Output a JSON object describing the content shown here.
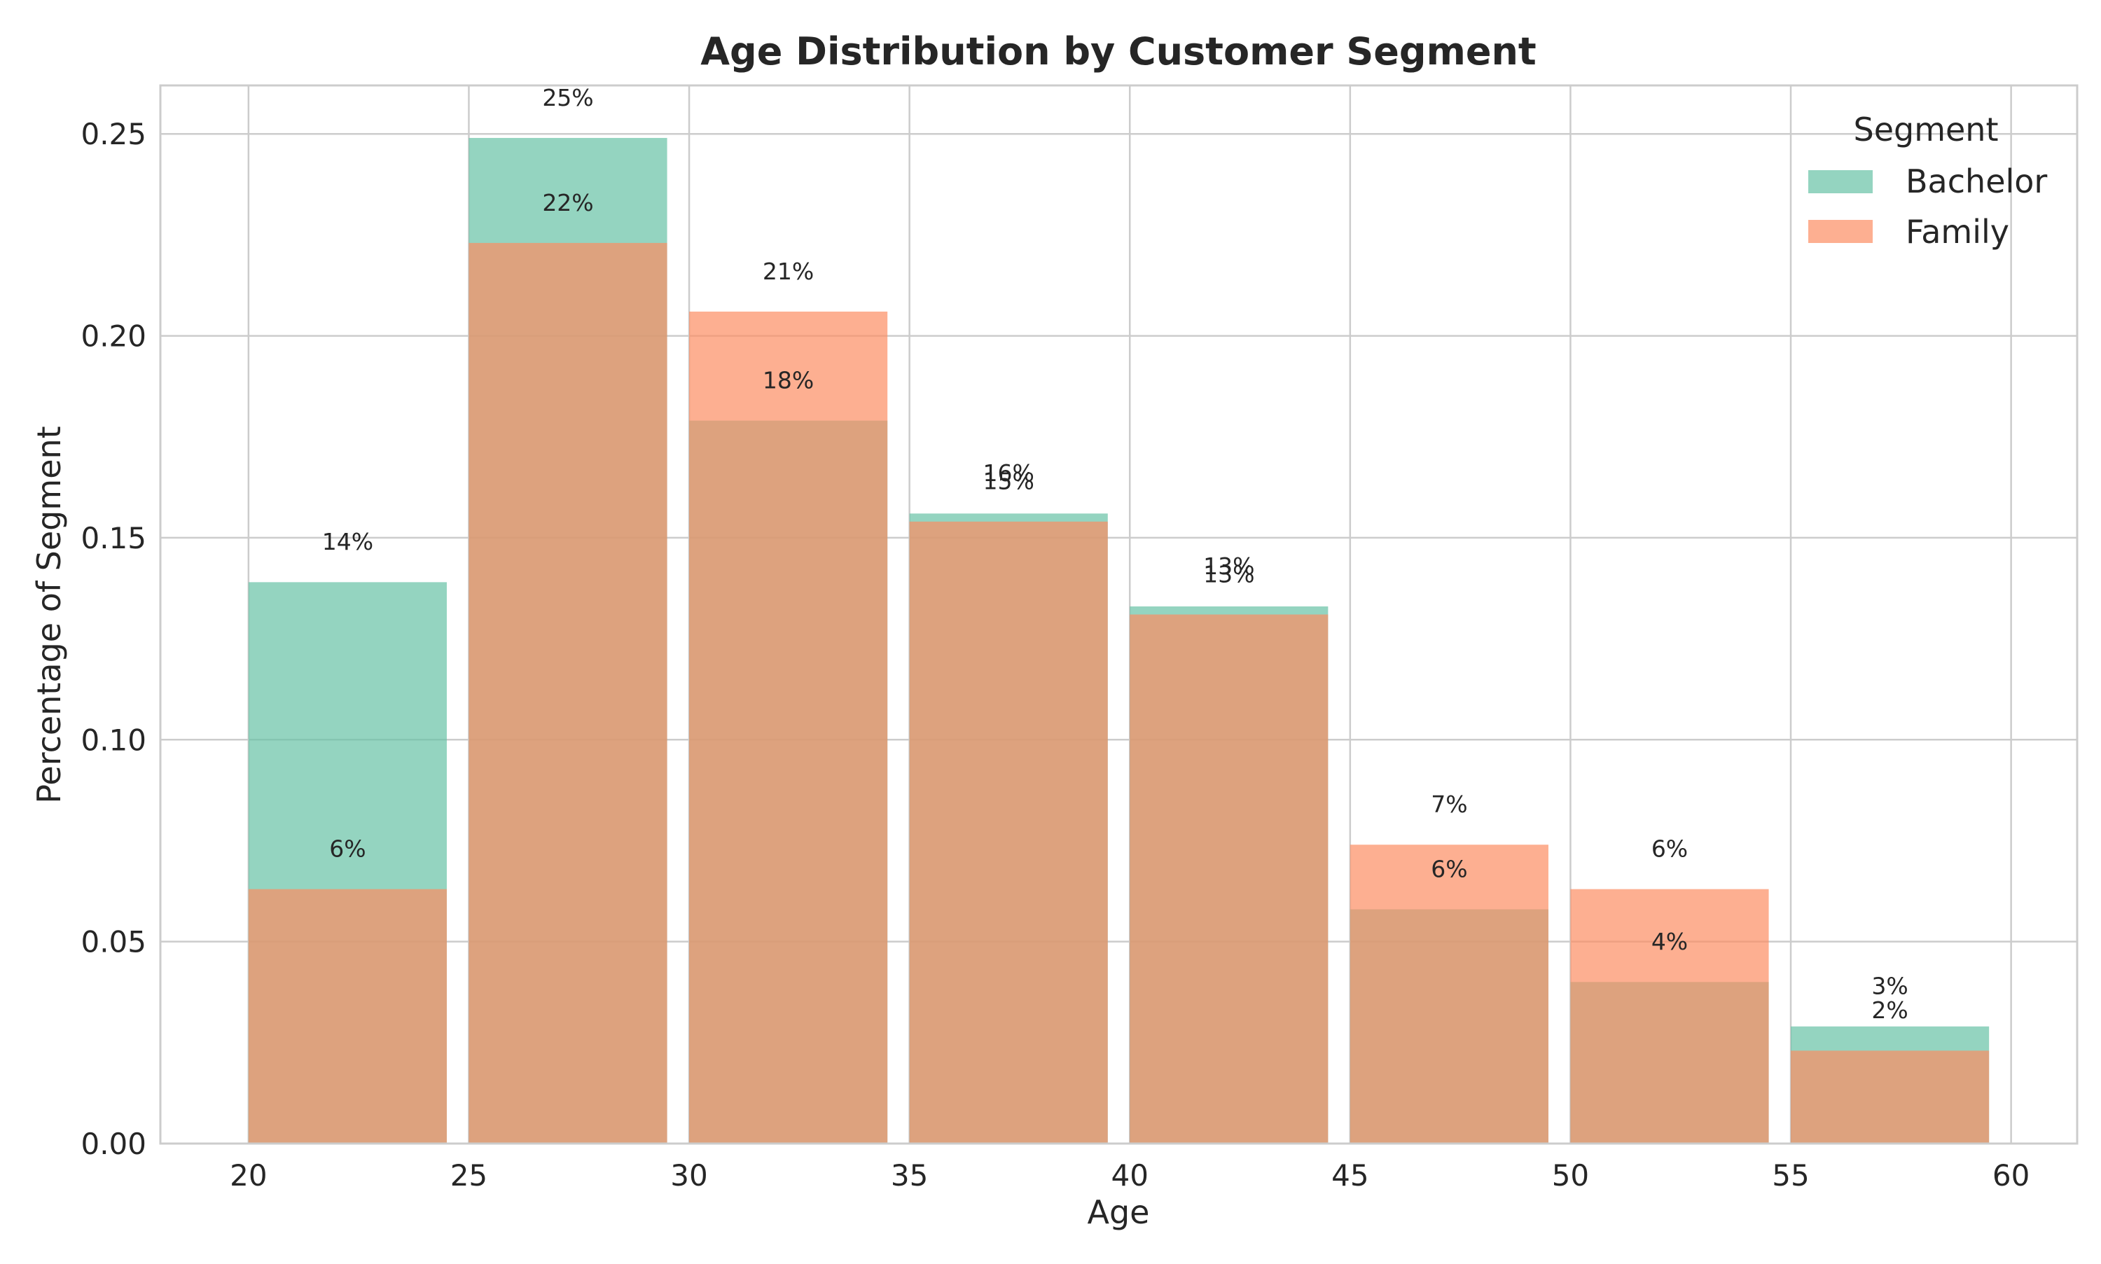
{
  "chart_data": {
    "type": "bar",
    "title": "Age Distribution by Customer Segment",
    "xlabel": "Age",
    "ylabel": "Percentage of Segment",
    "bins": [
      [
        20,
        25
      ],
      [
        25,
        30
      ],
      [
        30,
        35
      ],
      [
        35,
        40
      ],
      [
        40,
        45
      ],
      [
        45,
        50
      ],
      [
        50,
        55
      ],
      [
        55,
        60
      ]
    ],
    "xlim": [
      18,
      61.5
    ],
    "ylim": [
      0,
      0.262
    ],
    "xticks": [
      "20",
      "25",
      "30",
      "35",
      "40",
      "45",
      "50",
      "55",
      "60"
    ],
    "xtick_values": [
      20,
      25,
      30,
      35,
      40,
      45,
      50,
      55,
      60
    ],
    "yticks": [
      "0.00",
      "0.05",
      "0.10",
      "0.15",
      "0.20",
      "0.25"
    ],
    "ytick_values": [
      0,
      0.05,
      0.1,
      0.15,
      0.2,
      0.25
    ],
    "grid": true,
    "legend": {
      "title": "Segment",
      "position": "top-right"
    },
    "series": [
      {
        "name": "Bachelor",
        "color": "#66c2a5",
        "values": [
          0.139,
          0.249,
          0.179,
          0.156,
          0.133,
          0.058,
          0.04,
          0.029
        ],
        "labels": [
          "14%",
          "25%",
          "18%",
          "16%",
          "13%",
          "6%",
          "4%",
          "3%"
        ]
      },
      {
        "name": "Family",
        "color": "#fc8d62",
        "values": [
          0.063,
          0.223,
          0.206,
          0.154,
          0.131,
          0.074,
          0.063,
          0.023
        ],
        "labels": [
          "6%",
          "22%",
          "21%",
          "15%",
          "13%",
          "7%",
          "6%",
          "2%"
        ]
      }
    ]
  }
}
